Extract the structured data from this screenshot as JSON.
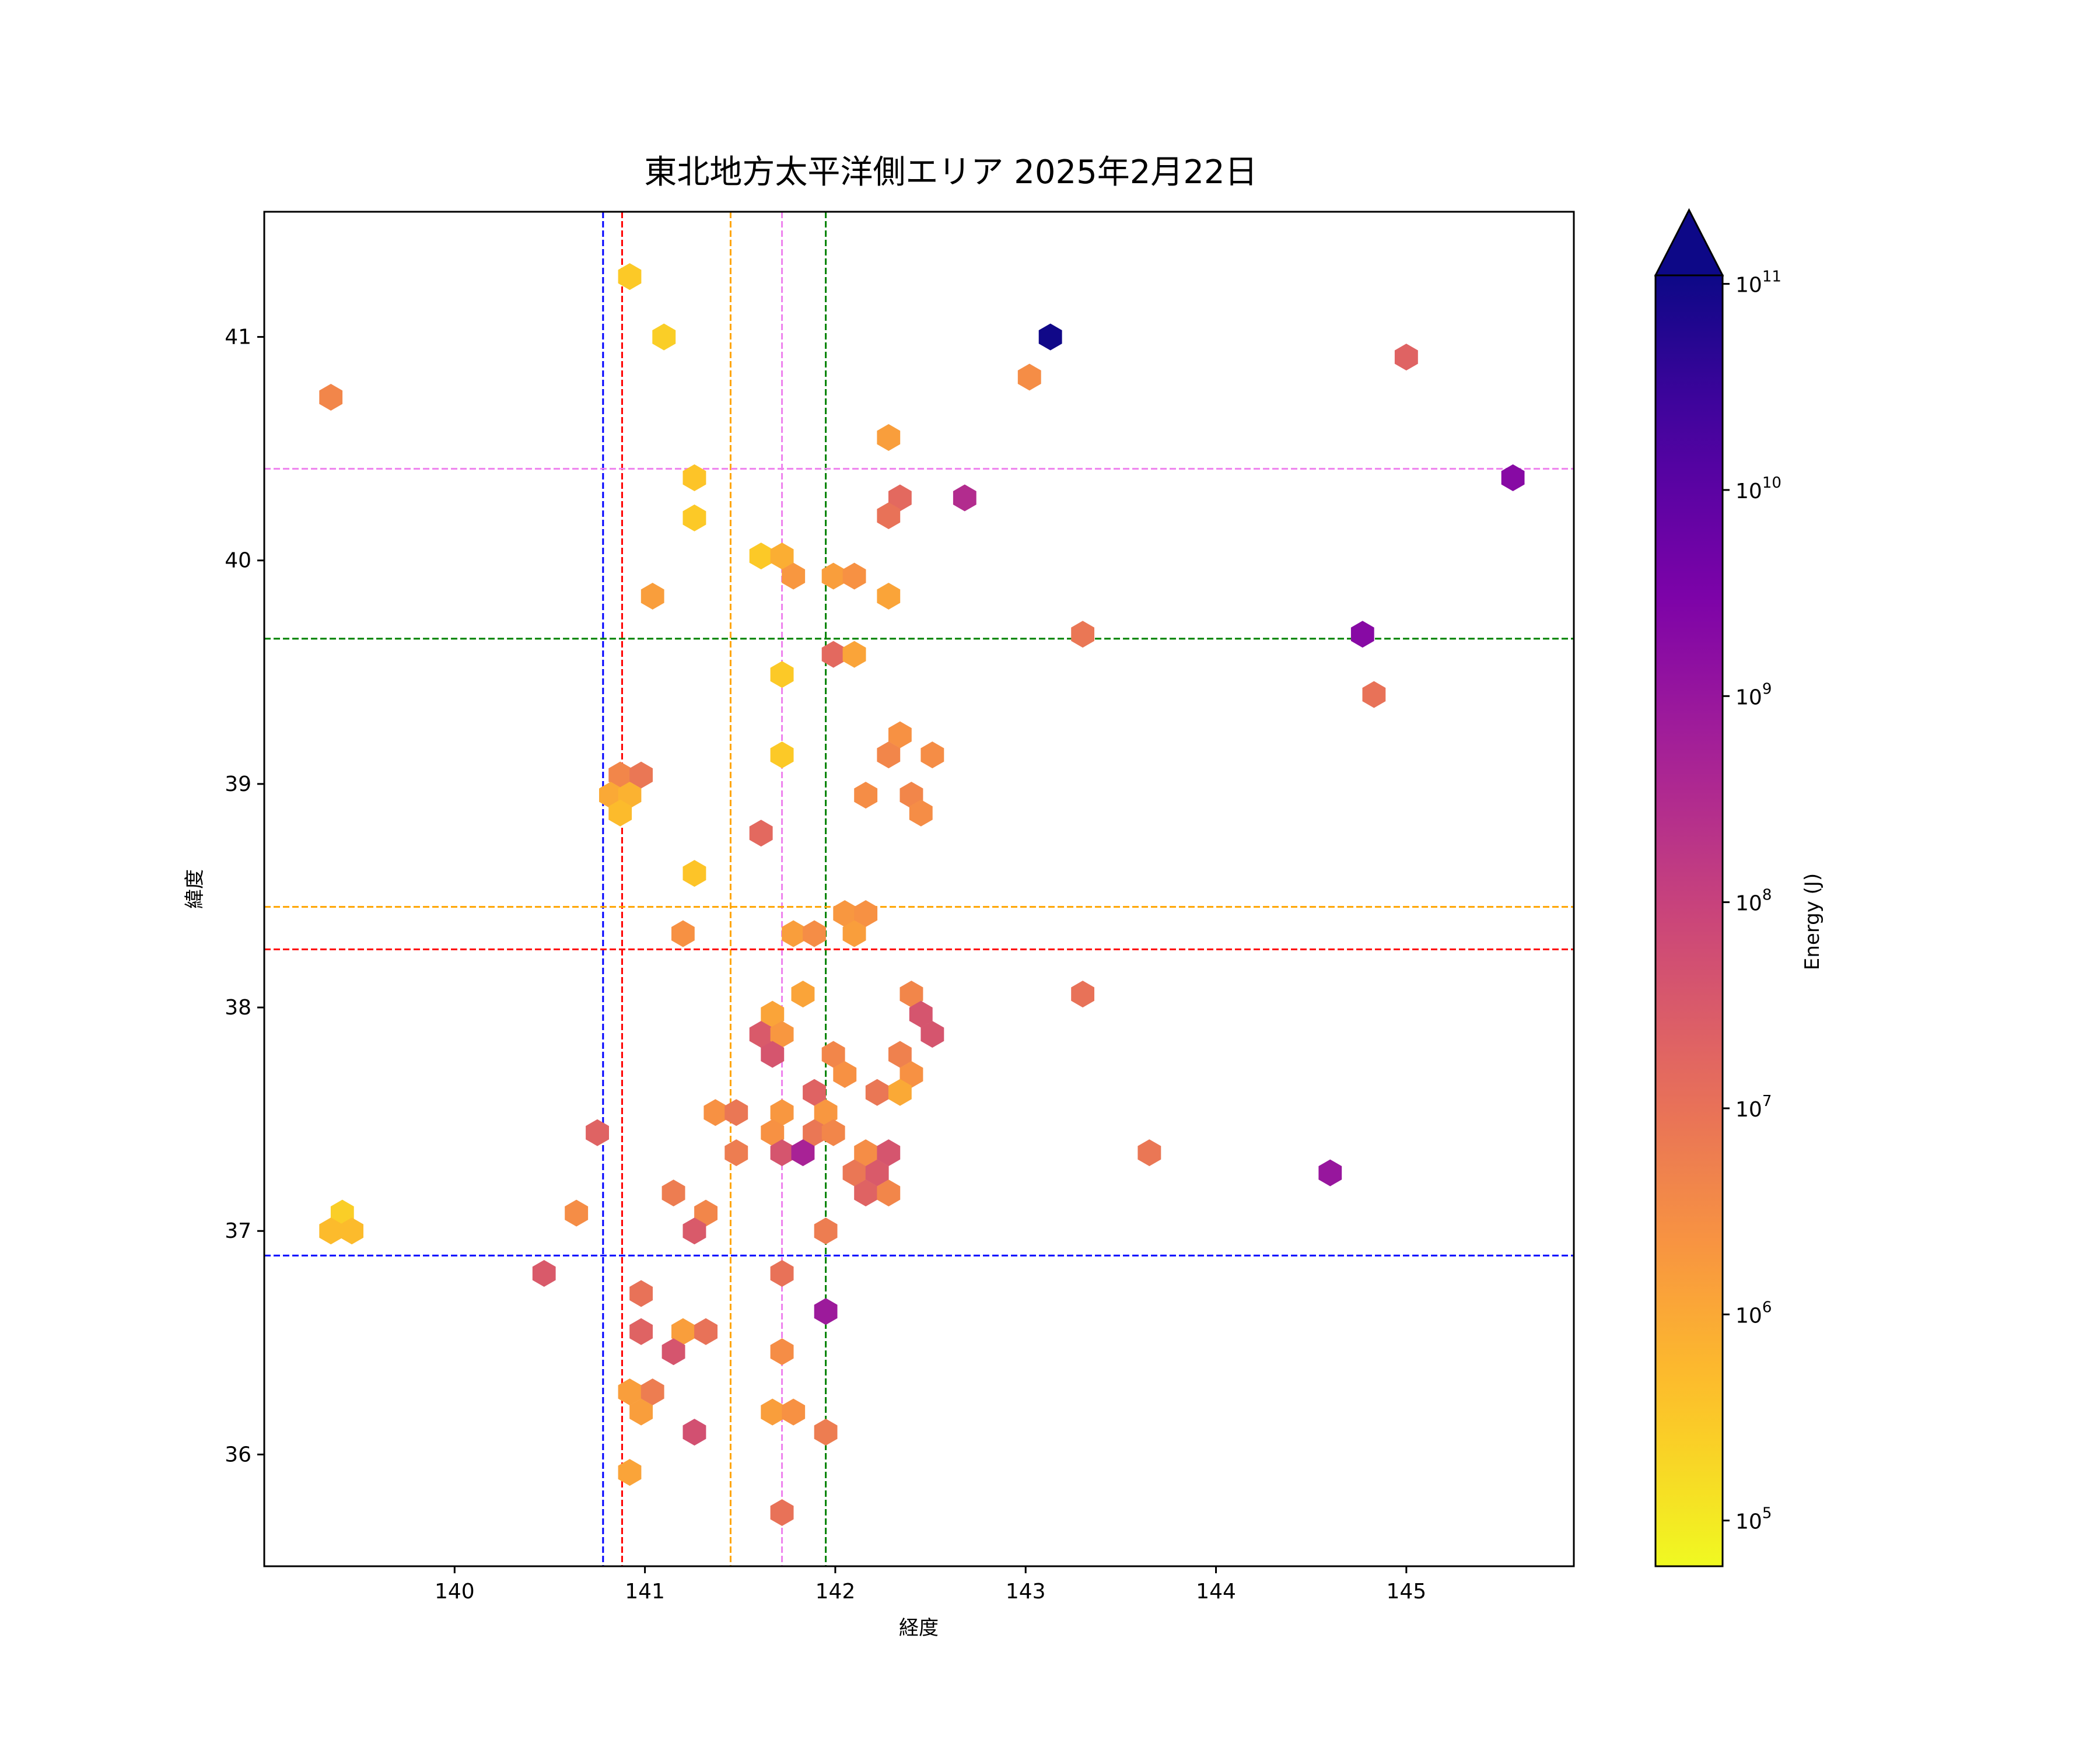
{
  "chart_data": {
    "type": "hexbin",
    "title": "東北地方太平洋側エリア 2025年2月22日",
    "xlabel": "経度",
    "ylabel": "緯度",
    "xlim": [
      139.0,
      145.88
    ],
    "ylim": [
      35.5,
      41.56
    ],
    "xticks": [
      140,
      141,
      142,
      143,
      144,
      145
    ],
    "yticks": [
      36,
      37,
      38,
      39,
      40,
      41
    ],
    "grid": false,
    "colorbar": {
      "label": "Energy (J)",
      "scale": "log",
      "range": [
        60000,
        110000000000
      ],
      "extend": "max",
      "colormap": "plasma_r",
      "ticks": [
        {
          "value": 100000,
          "base": "10",
          "exp": "5"
        },
        {
          "value": 1000000,
          "base": "10",
          "exp": "6"
        },
        {
          "value": 10000000,
          "base": "10",
          "exp": "7"
        },
        {
          "value": 100000000,
          "base": "10",
          "exp": "8"
        },
        {
          "value": 1000000000,
          "base": "10",
          "exp": "9"
        },
        {
          "value": 10000000000,
          "base": "10",
          "exp": "10"
        },
        {
          "value": 100000000000,
          "base": "10",
          "exp": "11"
        }
      ]
    },
    "reference_lines": {
      "vertical": [
        {
          "x": 140.78,
          "color": "#0000ff"
        },
        {
          "x": 140.88,
          "color": "#ff0000"
        },
        {
          "x": 141.45,
          "color": "#ffa500"
        },
        {
          "x": 141.72,
          "color": "#ee82ee"
        },
        {
          "x": 141.95,
          "color": "#008000"
        }
      ],
      "horizontal": [
        {
          "y": 40.41,
          "color": "#ee82ee"
        },
        {
          "y": 39.65,
          "color": "#008000"
        },
        {
          "y": 38.45,
          "color": "#ffa500"
        },
        {
          "y": 38.26,
          "color": "#ff0000"
        },
        {
          "y": 36.89,
          "color": "#0000ff"
        }
      ]
    },
    "points": [
      [
        140.92,
        41.27,
        300000
      ],
      [
        141.1,
        41.0,
        250000
      ],
      [
        139.35,
        40.73,
        4000000
      ],
      [
        143.13,
        41.0,
        100000000000
      ],
      [
        143.02,
        40.82,
        3000000
      ],
      [
        145.0,
        40.91,
        20000000
      ],
      [
        142.28,
        40.55,
        1500000
      ],
      [
        141.26,
        40.37,
        350000
      ],
      [
        141.26,
        40.19,
        300000
      ],
      [
        142.34,
        40.28,
        15000000
      ],
      [
        142.28,
        40.2,
        10000000
      ],
      [
        142.68,
        40.28,
        300000000
      ],
      [
        145.56,
        40.37,
        2000000000
      ],
      [
        141.61,
        40.02,
        300000
      ],
      [
        141.72,
        40.02,
        800000
      ],
      [
        141.78,
        39.93,
        2000000
      ],
      [
        141.99,
        39.93,
        1500000
      ],
      [
        142.1,
        39.93,
        2500000
      ],
      [
        141.04,
        39.84,
        1500000
      ],
      [
        142.28,
        39.84,
        1200000
      ],
      [
        143.3,
        39.67,
        8000000
      ],
      [
        144.77,
        39.67,
        2000000000
      ],
      [
        141.99,
        39.58,
        15000000
      ],
      [
        142.1,
        39.58,
        1200000
      ],
      [
        141.72,
        39.49,
        300000
      ],
      [
        144.83,
        39.4,
        10000000
      ],
      [
        142.34,
        39.22,
        2500000
      ],
      [
        142.28,
        39.13,
        4000000
      ],
      [
        142.51,
        39.13,
        3000000
      ],
      [
        141.72,
        39.13,
        300000
      ],
      [
        140.87,
        39.04,
        4000000
      ],
      [
        140.98,
        39.04,
        8000000
      ],
      [
        140.82,
        38.95,
        1000000
      ],
      [
        140.92,
        38.95,
        700000
      ],
      [
        140.87,
        38.87,
        500000
      ],
      [
        142.16,
        38.95,
        3000000
      ],
      [
        142.4,
        38.95,
        4000000
      ],
      [
        142.45,
        38.87,
        3000000
      ],
      [
        141.61,
        38.78,
        15000000
      ],
      [
        141.26,
        38.6,
        350000
      ],
      [
        142.05,
        38.42,
        2000000
      ],
      [
        142.16,
        38.42,
        2500000
      ],
      [
        141.2,
        38.33,
        2500000
      ],
      [
        141.78,
        38.33,
        1500000
      ],
      [
        141.89,
        38.33,
        3000000
      ],
      [
        142.1,
        38.33,
        1500000
      ],
      [
        141.83,
        38.06,
        1200000
      ],
      [
        142.4,
        38.06,
        4000000
      ],
      [
        143.3,
        38.06,
        10000000
      ],
      [
        141.67,
        37.97,
        1200000
      ],
      [
        142.45,
        37.97,
        40000000
      ],
      [
        141.61,
        37.88,
        30000000
      ],
      [
        141.72,
        37.88,
        2000000
      ],
      [
        142.51,
        37.88,
        40000000
      ],
      [
        141.67,
        37.79,
        40000000
      ],
      [
        141.99,
        37.79,
        4000000
      ],
      [
        142.34,
        37.79,
        5000000
      ],
      [
        142.05,
        37.7,
        2500000
      ],
      [
        142.4,
        37.7,
        2500000
      ],
      [
        141.89,
        37.62,
        20000000
      ],
      [
        142.22,
        37.62,
        8000000
      ],
      [
        142.34,
        37.62,
        1000000
      ],
      [
        141.37,
        37.53,
        2500000
      ],
      [
        141.48,
        37.53,
        8000000
      ],
      [
        141.72,
        37.53,
        2000000
      ],
      [
        141.95,
        37.53,
        2000000
      ],
      [
        140.75,
        37.44,
        20000000
      ],
      [
        141.67,
        37.44,
        2500000
      ],
      [
        141.89,
        37.44,
        8000000
      ],
      [
        141.99,
        37.44,
        4000000
      ],
      [
        141.48,
        37.35,
        6000000
      ],
      [
        141.72,
        37.35,
        40000000
      ],
      [
        141.83,
        37.35,
        500000000
      ],
      [
        142.16,
        37.35,
        3000000
      ],
      [
        142.28,
        37.35,
        40000000
      ],
      [
        143.65,
        37.35,
        8000000
      ],
      [
        142.1,
        37.26,
        8000000
      ],
      [
        142.22,
        37.26,
        30000000
      ],
      [
        144.6,
        37.26,
        1000000000
      ],
      [
        141.15,
        37.17,
        6000000
      ],
      [
        142.16,
        37.17,
        20000000
      ],
      [
        142.28,
        37.17,
        4000000
      ],
      [
        139.41,
        37.08,
        250000
      ],
      [
        140.64,
        37.08,
        3000000
      ],
      [
        141.32,
        37.08,
        4000000
      ],
      [
        139.35,
        37.0,
        500000
      ],
      [
        139.46,
        37.0,
        500000
      ],
      [
        141.26,
        37.0,
        30000000
      ],
      [
        141.95,
        37.0,
        6000000
      ],
      [
        140.47,
        36.81,
        30000000
      ],
      [
        141.72,
        36.81,
        10000000
      ],
      [
        140.98,
        36.72,
        10000000
      ],
      [
        141.95,
        36.64,
        800000000
      ],
      [
        140.98,
        36.55,
        20000000
      ],
      [
        141.2,
        36.55,
        1500000
      ],
      [
        141.32,
        36.55,
        10000000
      ],
      [
        141.15,
        36.46,
        40000000
      ],
      [
        141.72,
        36.46,
        3000000
      ],
      [
        140.92,
        36.28,
        1500000
      ],
      [
        141.04,
        36.28,
        6000000
      ],
      [
        140.98,
        36.19,
        1500000
      ],
      [
        141.67,
        36.19,
        1500000
      ],
      [
        141.78,
        36.19,
        2500000
      ],
      [
        141.26,
        36.1,
        50000000
      ],
      [
        141.95,
        36.1,
        6000000
      ],
      [
        140.92,
        35.92,
        1200000
      ],
      [
        141.72,
        35.74,
        10000000
      ]
    ]
  }
}
